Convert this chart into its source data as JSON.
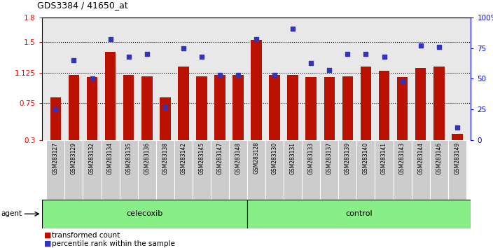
{
  "title": "GDS3384 / 41650_at",
  "categories": [
    "GSM283127",
    "GSM283129",
    "GSM283132",
    "GSM283134",
    "GSM283135",
    "GSM283136",
    "GSM283138",
    "GSM283142",
    "GSM283145",
    "GSM283147",
    "GSM283148",
    "GSM283128",
    "GSM283130",
    "GSM283131",
    "GSM283133",
    "GSM283137",
    "GSM283139",
    "GSM283140",
    "GSM283141",
    "GSM283143",
    "GSM283144",
    "GSM283146",
    "GSM283149"
  ],
  "bar_values": [
    0.82,
    1.1,
    1.07,
    1.38,
    1.1,
    1.08,
    0.82,
    1.2,
    1.08,
    1.1,
    1.1,
    1.52,
    1.1,
    1.1,
    1.07,
    1.07,
    1.08,
    1.2,
    1.15,
    1.07,
    1.18,
    1.2,
    0.38
  ],
  "dot_percentiles": [
    25,
    65,
    50,
    82,
    68,
    70,
    27,
    75,
    68,
    53,
    53,
    82,
    53,
    91,
    63,
    57,
    70,
    70,
    68,
    48,
    77,
    76,
    10
  ],
  "ylim_left": [
    0.3,
    1.8
  ],
  "ylim_right": [
    0,
    100
  ],
  "yticks_left": [
    0.3,
    0.75,
    1.125,
    1.5,
    1.8
  ],
  "ytick_labels_left": [
    "0.3",
    "0.75",
    "1.125",
    "1.5",
    "1.8"
  ],
  "yticks_right": [
    0,
    25,
    50,
    75,
    100
  ],
  "ytick_labels_right": [
    "0",
    "25",
    "50",
    "75",
    "100%"
  ],
  "hlines": [
    0.75,
    1.125,
    1.5
  ],
  "bar_color": "#BB1100",
  "dot_color": "#3333BB",
  "n_celecoxib": 11,
  "n_total": 23,
  "group1_label": "celecoxib",
  "group2_label": "control",
  "group_color": "#88EE88",
  "agent_label": "agent",
  "legend_bar_label": "transformed count",
  "legend_dot_label": "percentile rank within the sample",
  "plot_bg": "#e8e8e8",
  "label_strip_bg": "#cccccc"
}
